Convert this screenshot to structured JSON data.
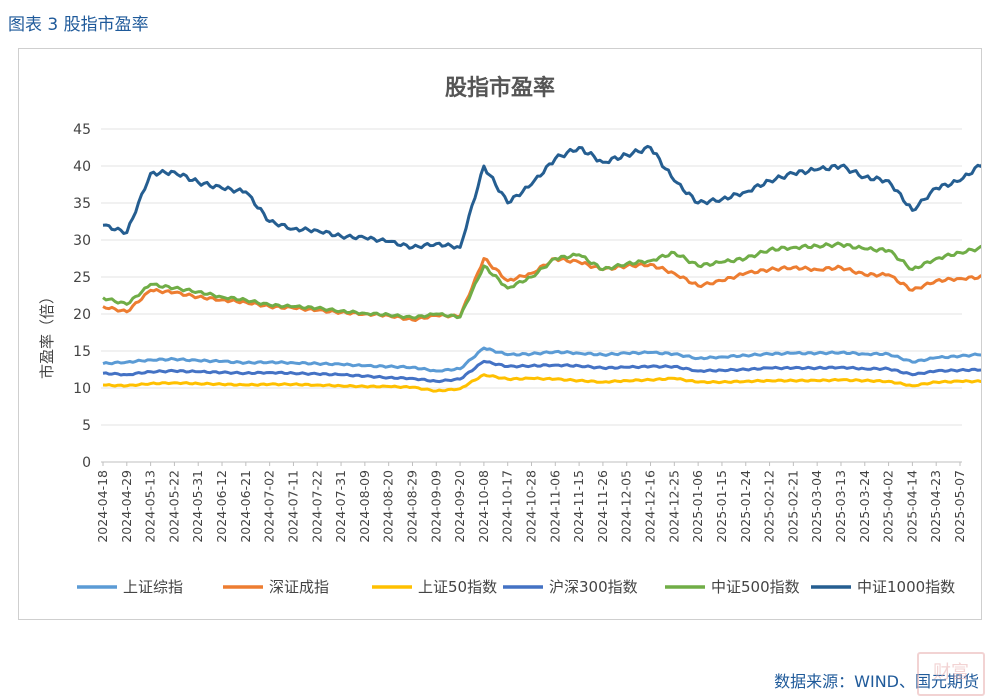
{
  "figure": {
    "caption": "图表 3 股指市盈率",
    "source": "数据来源：WIND、国元期货",
    "watermark": "财富"
  },
  "chart_data": {
    "type": "line",
    "title": "股指市盈率",
    "ylabel": "市盈率（倍）",
    "xlabel": "",
    "ylim": [
      0,
      45
    ],
    "yticks": [
      0,
      5,
      10,
      15,
      20,
      25,
      30,
      35,
      40,
      45
    ],
    "grid": true,
    "legend_position": "bottom",
    "x_start_date": "2024-04-18",
    "x_end_date": "2025-05-09",
    "tick_labels": [
      "2024-04-18",
      "2024-04-29",
      "2024-05-13",
      "2024-05-22",
      "2024-05-31",
      "2024-06-12",
      "2024-06-21",
      "2024-07-02",
      "2024-07-11",
      "2024-07-22",
      "2024-07-31",
      "2024-08-09",
      "2024-08-20",
      "2024-08-29",
      "2024-09-09",
      "2024-09-20",
      "2024-10-08",
      "2024-10-17",
      "2024-10-28",
      "2024-11-06",
      "2024-11-15",
      "2024-11-26",
      "2024-12-05",
      "2024-12-16",
      "2024-12-25",
      "2025-01-06",
      "2025-01-15",
      "2025-01-24",
      "2025-02-12",
      "2025-02-21",
      "2025-03-04",
      "2025-03-13",
      "2025-03-24",
      "2025-04-02",
      "2025-04-14",
      "2025-04-23",
      "2025-05-07"
    ],
    "series": [
      {
        "name": "上证综指",
        "color": "#5b9bd5",
        "values": [
          13.3,
          13.5,
          13.8,
          13.9,
          13.7,
          13.6,
          13.4,
          13.5,
          13.4,
          13.3,
          13.2,
          13.0,
          12.9,
          12.8,
          12.3,
          12.6,
          15.4,
          14.5,
          14.6,
          14.9,
          14.7,
          14.5,
          14.7,
          14.8,
          14.6,
          14.0,
          14.2,
          14.4,
          14.6,
          14.7,
          14.7,
          14.8,
          14.6,
          14.6,
          13.5,
          14.1,
          14.3,
          14.6
        ]
      },
      {
        "name": "深证成指",
        "color": "#ed7d31",
        "values": [
          21.0,
          20.3,
          23.2,
          22.9,
          22.3,
          21.9,
          21.6,
          21.0,
          20.8,
          20.5,
          20.2,
          20.0,
          19.8,
          19.2,
          19.8,
          19.7,
          27.5,
          24.5,
          25.5,
          27.5,
          27.0,
          26.0,
          26.5,
          26.7,
          25.5,
          23.8,
          24.5,
          25.5,
          26.0,
          26.3,
          26.0,
          26.3,
          25.3,
          25.3,
          23.2,
          24.5,
          24.8,
          25.0
        ]
      },
      {
        "name": "上证50指数",
        "color": "#ffc000",
        "values": [
          10.4,
          10.3,
          10.6,
          10.7,
          10.6,
          10.5,
          10.4,
          10.5,
          10.5,
          10.4,
          10.3,
          10.2,
          10.2,
          10.1,
          9.6,
          9.9,
          11.8,
          11.2,
          11.3,
          11.2,
          11.0,
          10.8,
          11.0,
          11.1,
          11.3,
          10.8,
          10.8,
          10.9,
          11.0,
          11.0,
          11.0,
          11.1,
          11.0,
          10.9,
          10.3,
          10.8,
          10.9,
          10.9
        ]
      },
      {
        "name": "沪深300指数",
        "color": "#4472c4",
        "values": [
          12.0,
          11.8,
          12.2,
          12.3,
          12.2,
          12.1,
          12.0,
          12.1,
          12.0,
          11.9,
          11.8,
          11.6,
          11.4,
          11.3,
          10.9,
          11.2,
          13.6,
          12.9,
          13.0,
          13.1,
          13.0,
          12.7,
          12.8,
          12.9,
          12.9,
          12.3,
          12.4,
          12.5,
          12.7,
          12.7,
          12.7,
          12.8,
          12.6,
          12.6,
          11.8,
          12.3,
          12.4,
          12.5
        ]
      },
      {
        "name": "中证500指数",
        "color": "#70ad47",
        "values": [
          22.2,
          21.3,
          24.0,
          23.5,
          23.0,
          22.3,
          21.9,
          21.2,
          21.0,
          20.8,
          20.4,
          20.1,
          19.9,
          19.5,
          20.0,
          19.6,
          26.5,
          23.5,
          25.0,
          27.5,
          28.0,
          26.0,
          26.8,
          27.2,
          28.3,
          26.5,
          27.0,
          27.5,
          28.7,
          29.0,
          29.2,
          29.4,
          28.8,
          28.6,
          26.0,
          27.5,
          28.3,
          29.0
        ]
      },
      {
        "name": "中证1000指数",
        "color": "#255e91",
        "values": [
          32.0,
          31.0,
          39.0,
          39.2,
          37.8,
          37.0,
          36.5,
          32.5,
          31.5,
          31.3,
          30.5,
          30.3,
          29.8,
          29.0,
          29.5,
          29.0,
          40.0,
          35.0,
          37.5,
          41.0,
          42.5,
          40.5,
          41.5,
          42.5,
          38.0,
          35.0,
          35.5,
          36.5,
          38.0,
          39.0,
          39.5,
          40.0,
          38.5,
          38.0,
          34.0,
          37.0,
          38.0,
          40.5
        ]
      }
    ]
  }
}
